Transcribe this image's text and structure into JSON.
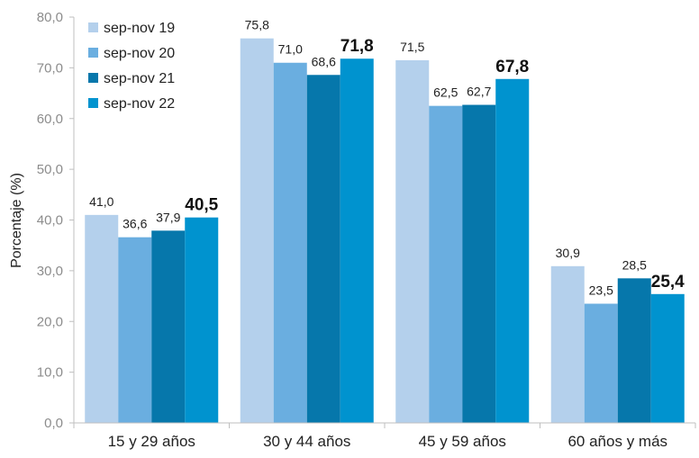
{
  "chart_data": {
    "type": "bar",
    "ylabel": "Porcentaje (%)",
    "ylim": [
      0,
      80
    ],
    "ytick_labels": [
      "0,0",
      "10,0",
      "20,0",
      "30,0",
      "40,0",
      "50,0",
      "60,0",
      "70,0",
      "80,0"
    ],
    "categories": [
      "15 y 29 años",
      "30 y 44 años",
      "45 y 59 años",
      "60 años y más"
    ],
    "series": [
      {
        "name": "sep-nov 19",
        "color": "#b4d0ec",
        "values": [
          41.0,
          75.8,
          71.5,
          30.9
        ],
        "labels": [
          "41,0",
          "75,8",
          "71,5",
          "30,9"
        ],
        "bold": false
      },
      {
        "name": "sep-nov 20",
        "color": "#6aaee0",
        "values": [
          36.6,
          71.0,
          62.5,
          23.5
        ],
        "labels": [
          "36,6",
          "71,0",
          "62,5",
          "23,5"
        ],
        "bold": false
      },
      {
        "name": "sep-nov 21",
        "color": "#0677ab",
        "values": [
          37.9,
          68.6,
          62.7,
          28.5
        ],
        "labels": [
          "37,9",
          "68,6",
          "62,7",
          "28,5"
        ],
        "bold": false
      },
      {
        "name": "sep-nov 22",
        "color": "#0093cf",
        "values": [
          40.5,
          71.8,
          67.8,
          25.4
        ],
        "labels": [
          "40,5",
          "71,8",
          "67,8",
          "25,4"
        ],
        "bold": true
      }
    ],
    "legend_position": "top-left",
    "grid": false
  }
}
